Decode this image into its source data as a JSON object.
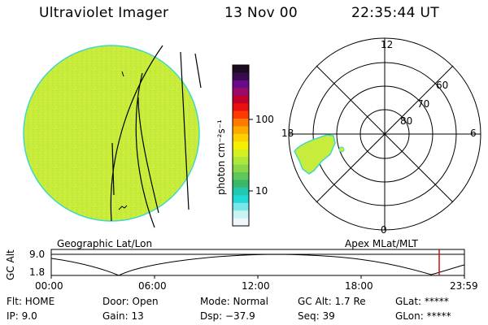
{
  "header": {
    "instrument": "Ultraviolet Imager",
    "date": "13 Nov 00",
    "time": "22:35:44 UT"
  },
  "colorbar": {
    "label": "photon cm⁻²s⁻¹",
    "ticks": [
      "100",
      "10"
    ],
    "colors": [
      "#1b0a20",
      "#3a0a50",
      "#6a0a8a",
      "#9a0a6a",
      "#c0002a",
      "#e81010",
      "#ff3a00",
      "#ff7a00",
      "#ffa800",
      "#ffd000",
      "#f4f000",
      "#d4f020",
      "#aee83a",
      "#8ad84a",
      "#5ec85a",
      "#3ab86a",
      "#22c8b0",
      "#22d8d8",
      "#7ae8e8",
      "#c8f4f4",
      "#eef8f8"
    ]
  },
  "left_panel": {
    "caption": "Geographic Lat/Lon",
    "fill_color": "#c8ec3c",
    "edge_color": "#40d8c8"
  },
  "right_panel": {
    "caption": "Apex MLat/MLT",
    "mlt_labels": [
      "12",
      "18",
      "6",
      "0"
    ],
    "lat_labels": [
      "60",
      "70",
      "80"
    ]
  },
  "timeline": {
    "axis_label": "GC Alt",
    "y_labels": [
      "9.0",
      "1.8"
    ],
    "x_labels": [
      "00:00",
      "06:00",
      "12:00",
      "18:00",
      "23:59"
    ],
    "marker_color": "#d01010"
  },
  "status": {
    "flt": "Flt: HOME",
    "ip": "IP:  9.0",
    "door": "Door: Open",
    "gain": "Gain: 13",
    "mode": "Mode: Normal",
    "dsp": "Dsp:  −37.9",
    "gcalt": "GC Alt: 1.7 Re",
    "seq": "Seq: 39",
    "glat": "GLat: *****",
    "glon": "GLon: *****"
  }
}
